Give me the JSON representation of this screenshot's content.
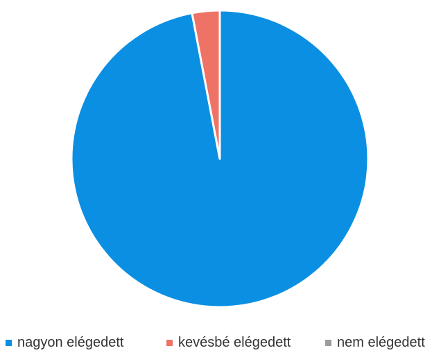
{
  "chart_data": {
    "type": "pie",
    "title": "",
    "slices": [
      {
        "label": "nagyon elégedett",
        "value": 97,
        "color": "#0B8FE3"
      },
      {
        "label": "kevésbé elégedett",
        "value": 3,
        "color": "#EE7366"
      },
      {
        "label": "nem elégedett",
        "value": 0,
        "color": "#9C9C9C"
      }
    ],
    "start": "top",
    "direction": "clockwise",
    "legend_position": "bottom"
  }
}
